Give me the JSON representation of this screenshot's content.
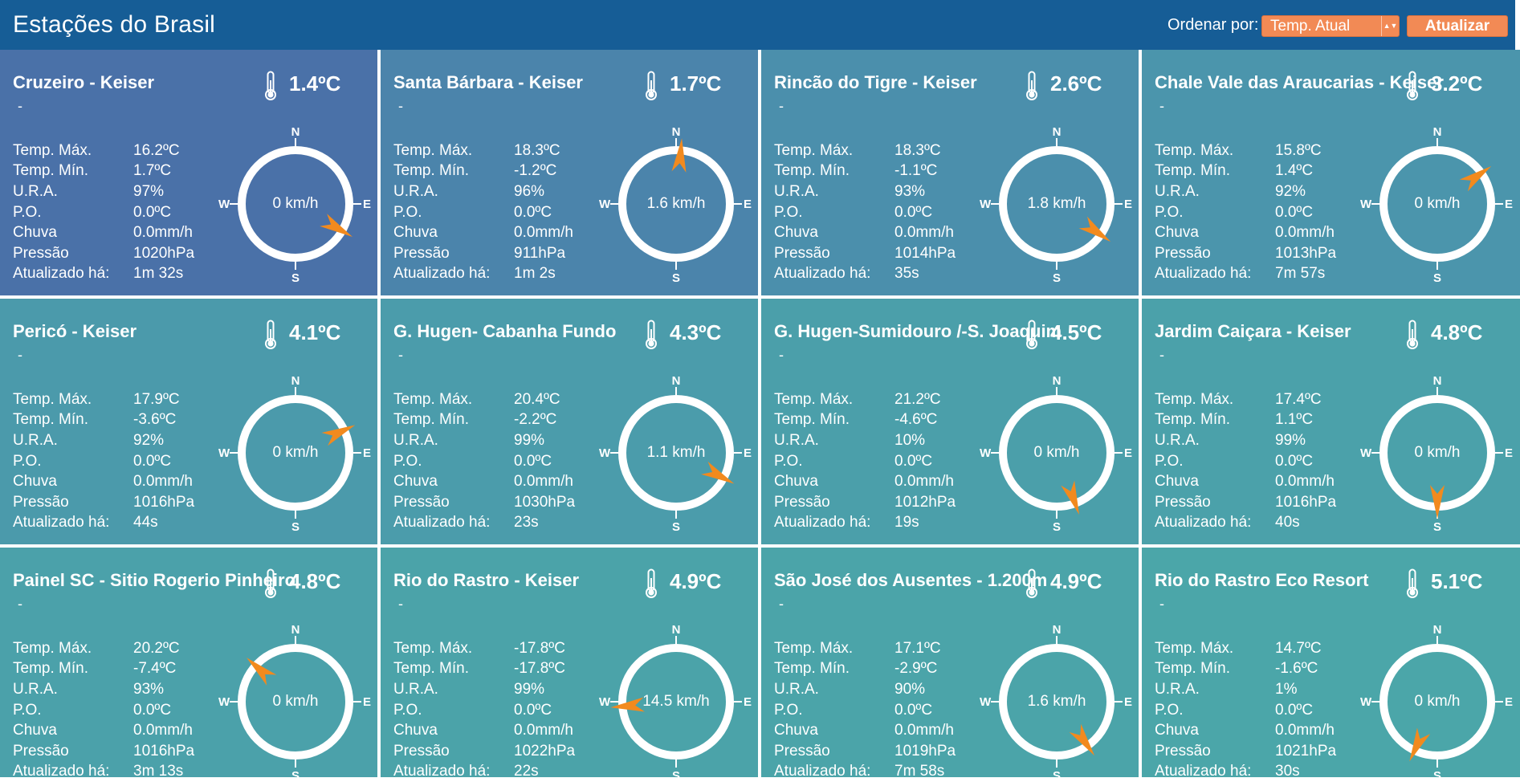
{
  "header": {
    "title": "Estações do Brasil",
    "sort_label": "Ordenar por:",
    "sort_selected": "Temp. Atual",
    "refresh_label": "Atualizar"
  },
  "compass_labels": {
    "n": "N",
    "s": "S",
    "e": "E",
    "w": "W"
  },
  "stat_labels": {
    "tmax": "Temp. Máx.",
    "tmin": "Temp. Mín.",
    "ura": "U.R.A.",
    "po": "P.O.",
    "chuva": "Chuva",
    "pressao": "Pressão",
    "atualizado": "Atualizado há:"
  },
  "colors": {
    "header_bg": "#165d96",
    "accent_orange": "#f28a55",
    "wind_arrow": "#f28a1e"
  },
  "stations": [
    {
      "name": "Cruzeiro - Keiser",
      "sub": "-",
      "temp": "1.4ºC",
      "tmax": "16.2ºC",
      "tmin": "1.7ºC",
      "ura": "97%",
      "po": "0.0ºC",
      "chuva": "0.0mm/h",
      "pressao": "1020hPa",
      "atualizado": "1m 32s",
      "wind": "0 km/h",
      "wind_dir_deg": 120,
      "bg": "#4a71a8"
    },
    {
      "name": "Santa Bárbara - Keiser",
      "sub": "-",
      "temp": "1.7ºC",
      "tmax": "18.3ºC",
      "tmin": "-1.2ºC",
      "ura": "96%",
      "po": "0.0ºC",
      "chuva": "0.0mm/h",
      "pressao": "911hPa",
      "atualizado": "1m 2s",
      "wind": "1.6 km/h",
      "wind_dir_deg": 5,
      "bg": "#4b84ab"
    },
    {
      "name": "Rincão do Tigre - Keiser",
      "sub": "-",
      "temp": "2.6ºC",
      "tmax": "18.3ºC",
      "tmin": "-1.1ºC",
      "ura": "93%",
      "po": "0.0ºC",
      "chuva": "0.0mm/h",
      "pressao": "1014hPa",
      "atualizado": "35s",
      "wind": "1.8 km/h",
      "wind_dir_deg": 125,
      "bg": "#4b8fac"
    },
    {
      "name": "Chale Vale das Araucarias - Keiser",
      "sub": "-",
      "temp": "3.2ºC",
      "tmax": "15.8ºC",
      "tmin": "1.4ºC",
      "ura": "92%",
      "po": "0.0ºC",
      "chuva": "0.0mm/h",
      "pressao": "1013hPa",
      "atualizado": "7m 57s",
      "wind": "0 km/h",
      "wind_dir_deg": 55,
      "bg": "#4b95ac"
    },
    {
      "name": "Pericó - Keiser",
      "sub": "-",
      "temp": "4.1ºC",
      "tmax": "17.9ºC",
      "tmin": "-3.6ºC",
      "ura": "92%",
      "po": "0.0ºC",
      "chuva": "0.0mm/h",
      "pressao": "1016hPa",
      "atualizado": "44s",
      "wind": "0 km/h",
      "wind_dir_deg": 65,
      "bg": "#4b9aab"
    },
    {
      "name": "G. Hugen- Cabanha Fundo",
      "sub": "-",
      "temp": "4.3ºC",
      "tmax": "20.4ºC",
      "tmin": "-2.2ºC",
      "ura": "99%",
      "po": "0.0ºC",
      "chuva": "0.0mm/h",
      "pressao": "1030hPa",
      "atualizado": "23s",
      "wind": "1.1 km/h",
      "wind_dir_deg": 118,
      "bg": "#4b9cab"
    },
    {
      "name": "G. Hugen-Sumidouro /-S. Joaquim",
      "sub": "-",
      "temp": "4.5ºC",
      "tmax": "21.2ºC",
      "tmin": "-4.6ºC",
      "ura": "10%",
      "po": "0.0ºC",
      "chuva": "0.0mm/h",
      "pressao": "1012hPa",
      "atualizado": "19s",
      "wind": "0 km/h",
      "wind_dir_deg": 160,
      "bg": "#4b9faa"
    },
    {
      "name": "Jardim Caiçara - Keiser",
      "sub": "-",
      "temp": "4.8ºC",
      "tmax": "17.4ºC",
      "tmin": "1.1ºC",
      "ura": "99%",
      "po": "0.0ºC",
      "chuva": "0.0mm/h",
      "pressao": "1016hPa",
      "atualizado": "40s",
      "wind": "0 km/h",
      "wind_dir_deg": 180,
      "bg": "#4ba1aa"
    },
    {
      "name": "Painel SC - Sitio Rogerio Pinheiro",
      "sub": "-",
      "temp": "4.8ºC",
      "tmax": "20.2ºC",
      "tmin": "-7.4ºC",
      "ura": "93%",
      "po": "0.0ºC",
      "chuva": "0.0mm/h",
      "pressao": "1016hPa",
      "atualizado": "3m 13s",
      "wind": "0 km/h",
      "wind_dir_deg": 312,
      "bg": "#4ba1aa"
    },
    {
      "name": "Rio do Rastro - Keiser",
      "sub": "-",
      "temp": "4.9ºC",
      "tmax": "-17.8ºC",
      "tmin": "-17.8ºC",
      "ura": "99%",
      "po": "0.0ºC",
      "chuva": "0.0mm/h",
      "pressao": "1022hPa",
      "atualizado": "22s",
      "wind": "14.5 km/h",
      "wind_dir_deg": 265,
      "bg": "#4ba3a9"
    },
    {
      "name": "São José dos Ausentes - 1.200m",
      "sub": "-",
      "temp": "4.9ºC",
      "tmax": "17.1ºC",
      "tmin": "-2.9ºC",
      "ura": "90%",
      "po": "0.0ºC",
      "chuva": "0.0mm/h",
      "pressao": "1019hPa",
      "atualizado": "7m 58s",
      "wind": "1.6 km/h",
      "wind_dir_deg": 145,
      "bg": "#4ba4a9"
    },
    {
      "name": "Rio do Rastro Eco Resort",
      "sub": "-",
      "temp": "5.1ºC",
      "tmax": "14.7ºC",
      "tmin": "-1.6ºC",
      "ura": "1%",
      "po": "0.0ºC",
      "chuva": "0.0mm/h",
      "pressao": "1021hPa",
      "atualizado": "30s",
      "wind": "0 km/h",
      "wind_dir_deg": 205,
      "bg": "#4ba6a9"
    }
  ]
}
